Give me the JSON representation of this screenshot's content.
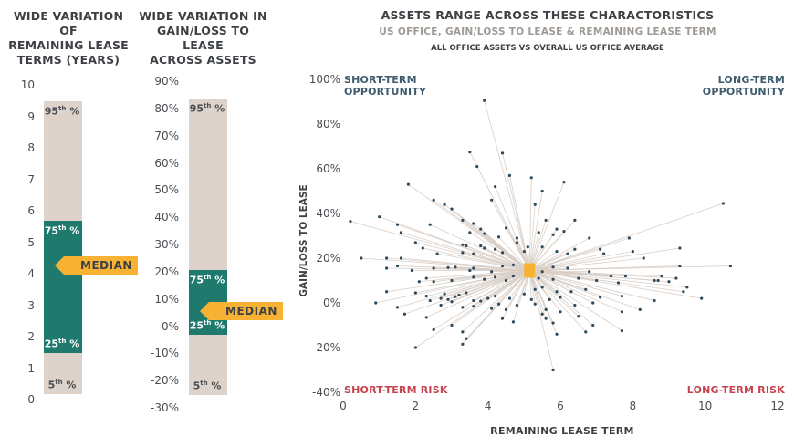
{
  "panel1": {
    "title_lines": [
      "WIDE VARIATION OF",
      "REMAINING LEASE",
      "TERMS (YEARS)"
    ],
    "ticks": [
      "10",
      "9",
      "8",
      "7",
      "6",
      "5",
      "4",
      "3",
      "2",
      "1",
      "0"
    ],
    "range": [
      0,
      10
    ],
    "p5": 0.2,
    "p25": 1.5,
    "median": 4.3,
    "p75": 5.7,
    "p95": 9.5,
    "labels": {
      "p95": "95",
      "p75": "75",
      "p25": "25",
      "p5": "5",
      "suffix": "th",
      "pct": " %",
      "median": "MEDIAN"
    }
  },
  "panel2": {
    "title_lines": [
      "WIDE VARIATION IN",
      "GAIN/LOSS TO LEASE",
      "ACROSS ASSETS"
    ],
    "ticks": [
      "90%",
      "80%",
      "70%",
      "60%",
      "50%",
      "40%",
      "30%",
      "20%",
      "10%",
      "0%",
      "-10%",
      "-20%",
      "-30%"
    ],
    "range": [
      -30,
      90
    ],
    "p5": -25,
    "p25": -3,
    "median": 6,
    "p75": 21,
    "p95": 84,
    "labels": {
      "p95": "95",
      "p75": "75",
      "p25": "25",
      "p5": "5",
      "suffix": "th",
      "pct": " %",
      "median": "MEDIAN"
    }
  },
  "chart_data": {
    "type": "scatter",
    "title": "ASSETS RANGE ACROSS THESE CHARACTORISTICS",
    "subtitle": "US OFFICE, GAIN/LOSS TO LEASE & REMAINING LEASE TERM",
    "subtitle2": "ALL OFFICE ASSETS VS OVERALL US OFFICE AVERAGE",
    "xlabel": "REMAINING LEASE TERM",
    "ylabel": "GAIN/LOSS TO LEASE",
    "xlim": [
      0,
      12
    ],
    "ylim": [
      -40,
      100
    ],
    "xticks": [
      "0",
      "2",
      "4",
      "6",
      "8",
      "10",
      "12"
    ],
    "yticks": [
      "100%",
      "80%",
      "60%",
      "40%",
      "20%",
      "0%",
      "-20%",
      "-40%"
    ],
    "grid": false,
    "quadrant_labels": {
      "top_left": [
        "SHORT-TERM",
        "OPPORTUNITY"
      ],
      "top_right": [
        "LONG-TERM",
        "OPPORTUNITY"
      ],
      "bottom_left": [
        "SHORT-TERM RISK"
      ],
      "bottom_right": [
        "LONG-TERM RISK"
      ]
    },
    "average": {
      "x": 5.15,
      "y": 14.5
    },
    "colors": {
      "point": "#2d4a5e",
      "average": "#f7b233",
      "line": "#d9cfc7",
      "opp": "#3f5b6e",
      "risk": "#c8414e"
    },
    "points": [
      [
        3.9,
        90.5
      ],
      [
        3.5,
        67.5
      ],
      [
        4.4,
        67
      ],
      [
        3.7,
        61
      ],
      [
        4.6,
        57
      ],
      [
        5.2,
        56
      ],
      [
        6.1,
        54
      ],
      [
        1.8,
        53
      ],
      [
        4.2,
        52
      ],
      [
        5.5,
        50
      ],
      [
        2.5,
        46
      ],
      [
        4.1,
        46
      ],
      [
        2.8,
        44
      ],
      [
        5.3,
        44
      ],
      [
        3.0,
        42
      ],
      [
        0.2,
        36.5
      ],
      [
        1.0,
        38.5
      ],
      [
        1.5,
        35
      ],
      [
        2.4,
        35
      ],
      [
        3.3,
        37
      ],
      [
        3.6,
        35.5
      ],
      [
        4.5,
        33.5
      ],
      [
        1.6,
        31.5
      ],
      [
        3.8,
        33
      ],
      [
        3.9,
        31
      ],
      [
        3.5,
        31.5
      ],
      [
        5.4,
        31.5
      ],
      [
        4.8,
        29
      ],
      [
        4.3,
        29.5
      ],
      [
        5.6,
        37
      ],
      [
        5.9,
        33
      ],
      [
        6.4,
        37
      ],
      [
        6.8,
        29
      ],
      [
        7.9,
        29
      ],
      [
        10.5,
        44.5
      ],
      [
        5.8,
        30.5
      ],
      [
        6.1,
        32
      ],
      [
        3.3,
        26
      ],
      [
        3.4,
        25.5
      ],
      [
        3.8,
        25.5
      ],
      [
        3.9,
        24.5
      ],
      [
        4.2,
        24
      ],
      [
        4.8,
        27
      ],
      [
        5.1,
        25
      ],
      [
        2.0,
        27
      ],
      [
        2.2,
        24.5
      ],
      [
        1.2,
        20
      ],
      [
        0.5,
        20
      ],
      [
        1.6,
        20
      ],
      [
        2.6,
        22
      ],
      [
        3.3,
        22.5
      ],
      [
        3.6,
        22
      ],
      [
        4.4,
        22.5
      ],
      [
        5.0,
        23
      ],
      [
        5.5,
        25
      ],
      [
        5.9,
        23
      ],
      [
        6.2,
        22
      ],
      [
        6.4,
        24
      ],
      [
        7.1,
        24
      ],
      [
        7.2,
        22
      ],
      [
        8.0,
        23
      ],
      [
        9.3,
        24.5
      ],
      [
        8.3,
        20
      ],
      [
        10.7,
        16.5
      ],
      [
        9.3,
        16.5
      ],
      [
        1.5,
        16.5
      ],
      [
        1.2,
        15.5
      ],
      [
        1.9,
        14.5
      ],
      [
        2.5,
        15.5
      ],
      [
        2.9,
        15.8
      ],
      [
        3.1,
        16
      ],
      [
        3.5,
        14.5
      ],
      [
        3.6,
        15.5
      ],
      [
        4.1,
        14
      ],
      [
        4.4,
        16.5
      ],
      [
        4.7,
        17
      ],
      [
        5.5,
        14
      ],
      [
        5.8,
        16
      ],
      [
        6.2,
        15.5
      ],
      [
        6.8,
        14
      ],
      [
        7.4,
        12
      ],
      [
        7.8,
        12
      ],
      [
        8.7,
        10
      ],
      [
        8.8,
        12
      ],
      [
        9.2,
        11
      ],
      [
        9.0,
        9.5
      ],
      [
        8.6,
        10
      ],
      [
        9.5,
        7
      ],
      [
        9.4,
        5
      ],
      [
        9.9,
        2
      ],
      [
        8.6,
        1
      ],
      [
        2.3,
        11
      ],
      [
        2.1,
        9.5
      ],
      [
        2.5,
        9.5
      ],
      [
        3.0,
        10
      ],
      [
        3.6,
        11.5
      ],
      [
        3.9,
        10.5
      ],
      [
        4.2,
        11.5
      ],
      [
        4.5,
        10
      ],
      [
        4.7,
        12
      ],
      [
        5.4,
        11
      ],
      [
        5.8,
        10.5
      ],
      [
        6.5,
        11
      ],
      [
        7.0,
        10
      ],
      [
        7.6,
        9
      ],
      [
        5.5,
        7
      ],
      [
        5.9,
        5
      ],
      [
        6.3,
        5
      ],
      [
        6.7,
        6
      ],
      [
        7.1,
        2.5
      ],
      [
        7.7,
        3
      ],
      [
        1.2,
        5
      ],
      [
        2.0,
        4.5
      ],
      [
        2.3,
        3
      ],
      [
        2.8,
        4
      ],
      [
        3.2,
        3.5
      ],
      [
        3.4,
        4.5
      ],
      [
        3.6,
        1
      ],
      [
        4.2,
        3
      ],
      [
        4.6,
        2
      ],
      [
        5.0,
        4
      ],
      [
        5.3,
        6
      ],
      [
        5.7,
        1.5
      ],
      [
        6.0,
        2.5
      ],
      [
        6.4,
        -1
      ],
      [
        6.9,
        0
      ],
      [
        7.7,
        -4
      ],
      [
        8.2,
        -3
      ],
      [
        0.9,
        0
      ],
      [
        1.5,
        -2
      ],
      [
        2.4,
        1
      ],
      [
        2.7,
        -1
      ],
      [
        3.0,
        0.5
      ],
      [
        3.3,
        -2
      ],
      [
        3.6,
        -1.5
      ],
      [
        4.1,
        -2.5
      ],
      [
        4.5,
        -3
      ],
      [
        4.8,
        -1
      ],
      [
        5.3,
        -0.5
      ],
      [
        5.6,
        -3
      ],
      [
        6.0,
        -4
      ],
      [
        6.5,
        -6
      ],
      [
        2.7,
        2
      ],
      [
        2.9,
        1.5
      ],
      [
        3.1,
        2.8
      ],
      [
        3.8,
        0.8
      ],
      [
        4.0,
        2
      ],
      [
        4.3,
        -0.5
      ],
      [
        5.2,
        1.5
      ],
      [
        5.5,
        -5
      ],
      [
        5.8,
        -9
      ],
      [
        6.9,
        -10
      ],
      [
        7.7,
        -12.5
      ],
      [
        1.7,
        -5
      ],
      [
        2.3,
        -6.5
      ],
      [
        3.0,
        -10
      ],
      [
        2.5,
        -12
      ],
      [
        3.3,
        -13
      ],
      [
        4.4,
        -7
      ],
      [
        4.7,
        -8.5
      ],
      [
        5.9,
        -14
      ],
      [
        6.7,
        -13
      ],
      [
        5.6,
        -7
      ],
      [
        3.4,
        -16
      ],
      [
        3.3,
        -18.5
      ],
      [
        2.0,
        -20
      ],
      [
        5.8,
        -30
      ]
    ]
  }
}
